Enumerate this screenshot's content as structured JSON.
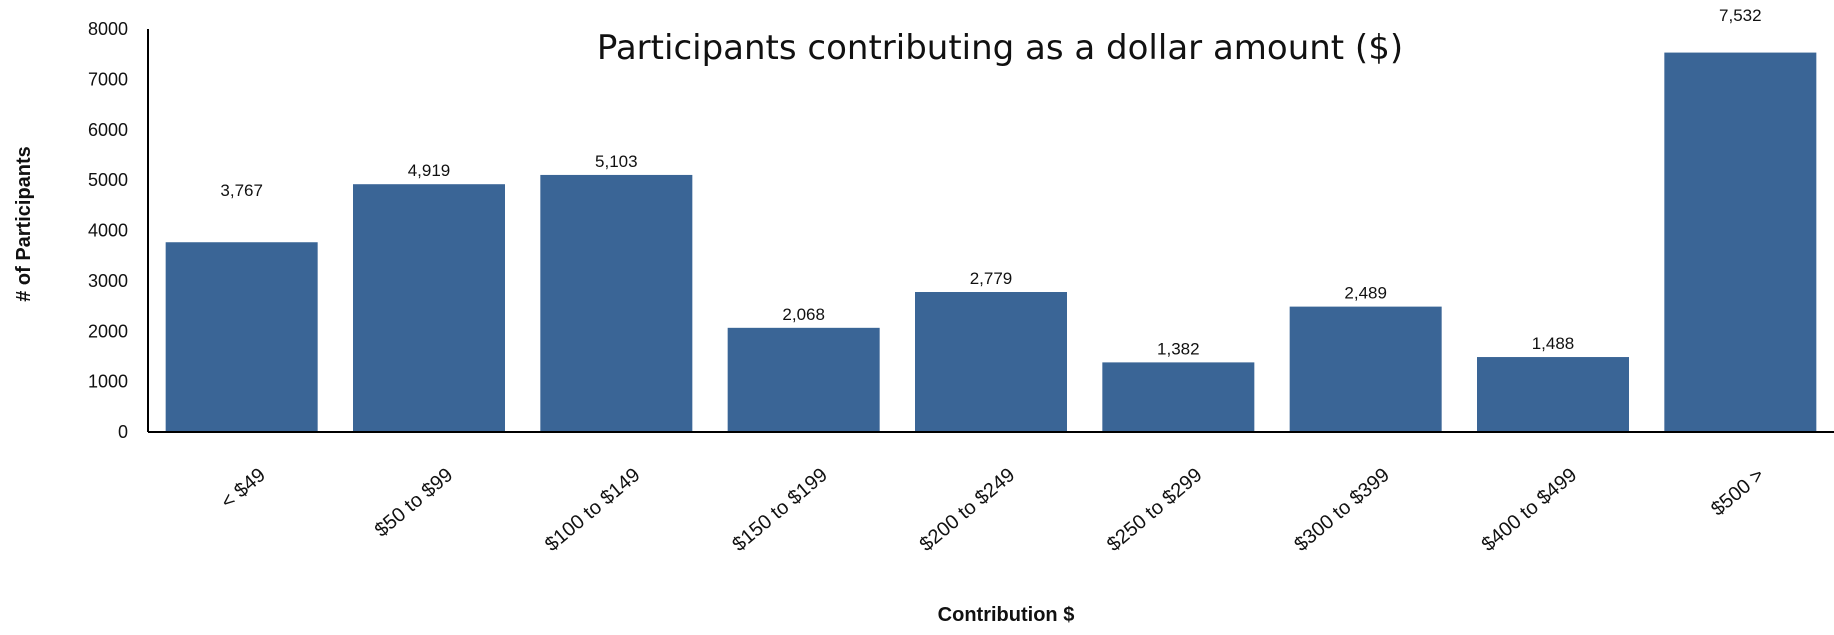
{
  "chart_data": {
    "type": "bar",
    "title": "Participants contributing as a dollar amount ($)",
    "xlabel": "Contribution $",
    "ylabel": "# of Participants",
    "categories": [
      "< $49",
      "$50 to $99",
      "$100 to $149",
      "$150 to $199",
      "$200 to $249",
      "$250 to $299",
      "$300 to $399",
      "$400 to $499",
      "$500 >"
    ],
    "values": [
      3767,
      4919,
      5103,
      2068,
      2779,
      1382,
      2489,
      1488,
      7532
    ],
    "data_labels": [
      "3,767",
      "4,919",
      "5,103",
      "2,068",
      "2,779",
      "1,382",
      "2,489",
      "1,488",
      "7,532"
    ],
    "yticks": [
      0,
      1000,
      2000,
      3000,
      4000,
      5000,
      6000,
      7000,
      8000
    ],
    "ylim": [
      0,
      8000
    ],
    "grid": false,
    "legend": "none",
    "bar_color": "#3a6596"
  }
}
